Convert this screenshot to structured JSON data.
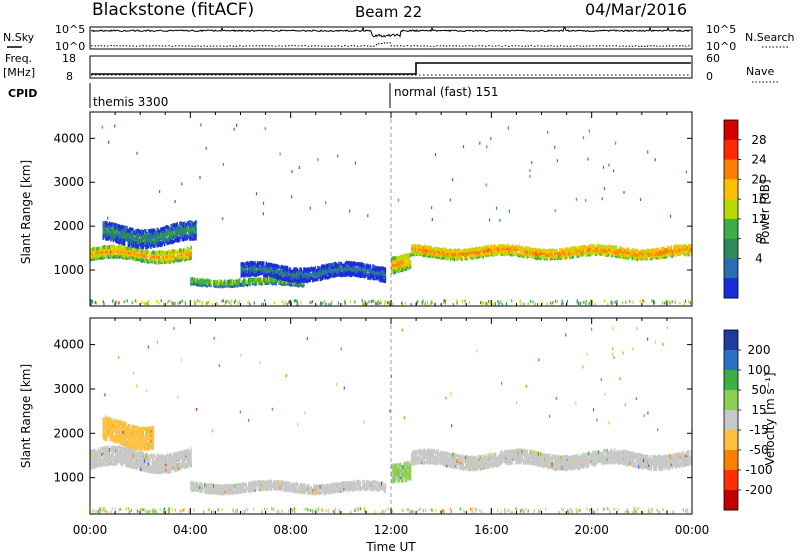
{
  "header": {
    "station": "Blackstone (fitACF)",
    "beam": "Beam 22",
    "date": "04/Mar/2016"
  },
  "top_panels": {
    "nsky_label": "N.Sky",
    "nsky_ticks": [
      "10^5",
      "10^0"
    ],
    "nsearch_label": "N.Search",
    "nsearch_ticks": [
      "10^5",
      "10^0"
    ],
    "freq_label": "Freq.",
    "freq_unit": "[MHz]",
    "freq_ticks": [
      "18",
      "8"
    ],
    "nave_label": "Nave",
    "nave_ticks": [
      "60",
      "0"
    ],
    "cpid_label": "CPID",
    "cpid_segments": [
      {
        "start_hour": 0,
        "label": "themis 3300"
      },
      {
        "start_hour": 12,
        "label": "normal (fast) 151"
      }
    ],
    "frequency_step": {
      "before_hour": 12.8,
      "level": "low",
      "after_level": "high"
    }
  },
  "chart_data": [
    {
      "type": "heatmap",
      "name": "power",
      "ylabel": "Slant Range [km]",
      "ylim": [
        180,
        4600
      ],
      "yticks": [
        "4000",
        "3000",
        "2000",
        "1000"
      ],
      "ytick_values": [
        4000,
        3000,
        2000,
        1000
      ],
      "xlim": [
        0,
        24
      ],
      "colorbar_label": "Power [dB]",
      "colorbar_ticks": [
        "28",
        "24",
        "20",
        "16",
        "12",
        "8",
        "4"
      ],
      "colorbar_values": [
        28,
        24,
        20,
        16,
        12,
        8,
        4
      ],
      "colorbar_colors": [
        "#d40000",
        "#ff2a00",
        "#ff8000",
        "#ffc000",
        "#b8d800",
        "#3cb044",
        "#2e8b57",
        "#2a6db0",
        "#1a2cd8"
      ],
      "clim": [
        0,
        32
      ],
      "features": [
        {
          "start": 0.0,
          "end": 4.0,
          "center_km": 1350,
          "width_km": 260,
          "level_db": 22
        },
        {
          "start": 0.5,
          "end": 4.2,
          "center_km": 1800,
          "width_km": 400,
          "level_db": 10
        },
        {
          "start": 4.0,
          "end": 8.5,
          "center_km": 720,
          "width_km": 140,
          "level_db": 16
        },
        {
          "start": 6.0,
          "end": 11.8,
          "center_km": 950,
          "width_km": 300,
          "level_db": 8
        },
        {
          "start": 12.0,
          "end": 12.8,
          "center_km": 1150,
          "width_km": 350,
          "level_db": 22
        },
        {
          "start": 12.8,
          "end": 24.0,
          "center_km": 1400,
          "width_km": 220,
          "level_db": 24
        }
      ]
    },
    {
      "type": "heatmap",
      "name": "velocity",
      "ylabel": "Slant Range [km]",
      "ylim": [
        180,
        4600
      ],
      "yticks": [
        "4000",
        "3000",
        "2000",
        "1000"
      ],
      "ytick_values": [
        4000,
        3000,
        2000,
        1000
      ],
      "xlim": [
        0,
        24
      ],
      "xticks": [
        "00:00",
        "04:00",
        "08:00",
        "12:00",
        "16:00",
        "20:00",
        "00:00"
      ],
      "xtick_values": [
        0,
        4,
        8,
        12,
        16,
        20,
        24
      ],
      "xlabel": "Time UT",
      "colorbar_label": "Velocity [m s⁻¹]",
      "colorbar_ticks": [
        "200",
        "100",
        "50",
        "15",
        "-15",
        "-50",
        "-100",
        "-200"
      ],
      "colorbar_values": [
        200,
        100,
        50,
        15,
        -15,
        -50,
        -100,
        -200
      ],
      "colorbar_colors": [
        "#1e3ca0",
        "#2a70c8",
        "#3cb044",
        "#8cd050",
        "#c8c8c8",
        "#ffc040",
        "#ff8000",
        "#ff3000",
        "#c00000"
      ],
      "clim": [
        -250,
        250
      ],
      "features": [
        {
          "start": 0.0,
          "end": 4.0,
          "center_km": 1400,
          "width_km": 400,
          "velocity": 0
        },
        {
          "start": 0.5,
          "end": 2.5,
          "center_km": 2000,
          "width_km": 500,
          "velocity": -60
        },
        {
          "start": 4.0,
          "end": 11.8,
          "center_km": 780,
          "width_km": 200,
          "velocity": 5
        },
        {
          "start": 12.0,
          "end": 12.8,
          "center_km": 1200,
          "width_km": 400,
          "velocity": 40
        },
        {
          "start": 12.8,
          "end": 24.0,
          "center_km": 1400,
          "width_km": 300,
          "velocity": 0
        }
      ]
    }
  ]
}
